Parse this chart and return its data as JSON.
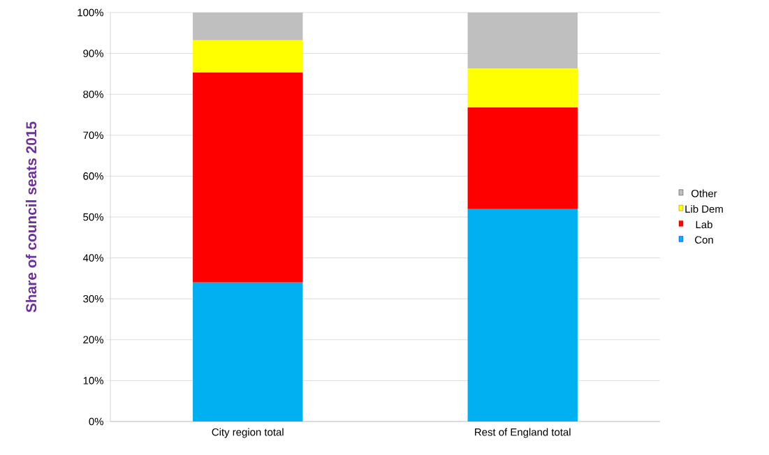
{
  "chart_data": {
    "type": "bar",
    "stacked": true,
    "ylabel": "Share of council seats 2015",
    "categories": [
      "City region total",
      "Rest of England total"
    ],
    "series": [
      {
        "name": "Con",
        "color": "#00b0f0",
        "values": [
          34.0,
          51.9
        ]
      },
      {
        "name": "Lab",
        "color": "#ff0000",
        "values": [
          51.3,
          24.9
        ]
      },
      {
        "name": "Lib Dem",
        "color": "#ffff00",
        "values": [
          7.9,
          9.5
        ]
      },
      {
        "name": "Other",
        "color": "#bfbfbf",
        "values": [
          6.8,
          13.7
        ]
      }
    ],
    "ylim": [
      0,
      100
    ],
    "yticks": [
      {
        "value": 0,
        "label": "0%"
      },
      {
        "value": 10,
        "label": "10%"
      },
      {
        "value": 20,
        "label": "20%"
      },
      {
        "value": 30,
        "label": "30%"
      },
      {
        "value": 40,
        "label": "40%"
      },
      {
        "value": 50,
        "label": "50%"
      },
      {
        "value": 60,
        "label": "60%"
      },
      {
        "value": 70,
        "label": "70%"
      },
      {
        "value": 80,
        "label": "80%"
      },
      {
        "value": 90,
        "label": "90%"
      },
      {
        "value": 100,
        "label": "100%"
      }
    ],
    "grid": "y",
    "legend": "right"
  }
}
